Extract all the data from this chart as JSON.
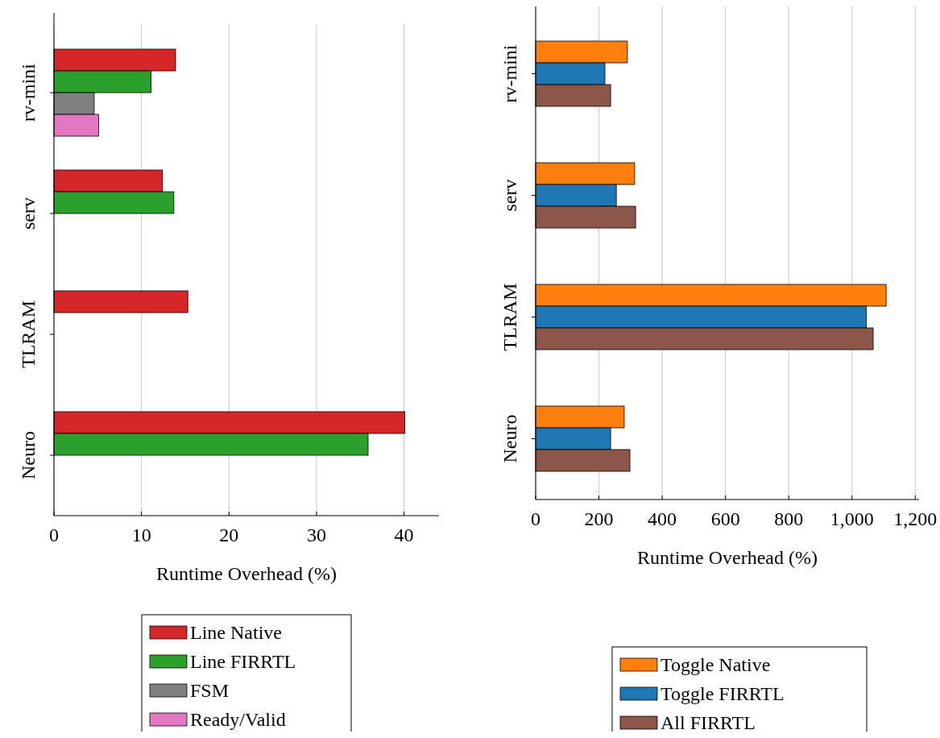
{
  "chart_data": [
    {
      "type": "bar",
      "orientation": "horizontal",
      "categories": [
        "rv-mini",
        "serv",
        "TLRAM",
        "Neuro"
      ],
      "xlabel": "Runtime Overhead (%)",
      "xlim": [
        0,
        44
      ],
      "xticks": [
        0,
        10,
        20,
        30,
        40
      ],
      "grid": "x",
      "legend": "bottom",
      "series": [
        {
          "name": "Line Native",
          "color": "#d62728",
          "values": [
            13.9,
            12.4,
            15.3,
            40.1
          ]
        },
        {
          "name": "Line FIRRTL",
          "color": "#2ca02c",
          "values": [
            11.1,
            13.7,
            null,
            35.9
          ]
        },
        {
          "name": "FSM",
          "color": "#7f7f7f",
          "values": [
            4.6,
            null,
            null,
            null
          ]
        },
        {
          "name": "Ready/Valid",
          "color": "#e377c2",
          "values": [
            5.1,
            null,
            null,
            null
          ]
        }
      ]
    },
    {
      "type": "bar",
      "orientation": "horizontal",
      "categories": [
        "rv-mini",
        "serv",
        "TLRAM",
        "Neuro"
      ],
      "xlabel": "Runtime Overhead (%)",
      "xlim": [
        0,
        1212
      ],
      "xticks": [
        0,
        200,
        400,
        600,
        800,
        {
          "value": 1000,
          "label": "1,000"
        },
        {
          "value": 1200,
          "label": "1,200"
        }
      ],
      "grid": "x",
      "legend": "bottom",
      "series": [
        {
          "name": "Toggle Native",
          "color": "#ff7f0e",
          "values": [
            290,
            313,
            1108,
            280
          ]
        },
        {
          "name": "Toggle FIRRTL",
          "color": "#1f77b4",
          "values": [
            219,
            255,
            1045,
            237
          ]
        },
        {
          "name": "All FIRRTL",
          "color": "#8c564b",
          "values": [
            237,
            316,
            1067,
            298
          ]
        }
      ]
    }
  ]
}
